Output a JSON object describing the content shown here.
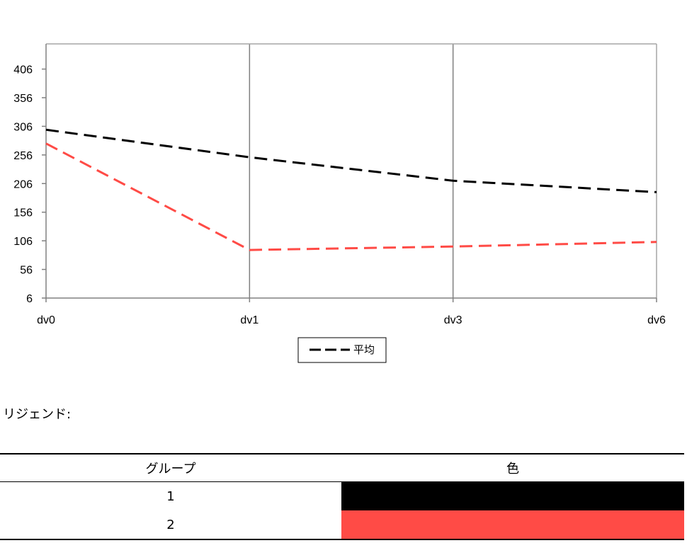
{
  "chart_data": {
    "type": "line",
    "categories": [
      "dv0",
      "dv1",
      "dv3",
      "dv6"
    ],
    "y_ticks": [
      6,
      56,
      106,
      156,
      206,
      256,
      306,
      356,
      406
    ],
    "ylim": [
      6,
      450
    ],
    "grid": "vertical",
    "series": [
      {
        "name": "平均",
        "color": "#000000",
        "dash": true,
        "values": [
          300,
          252,
          211,
          191
        ]
      },
      {
        "color": "#ff4b46",
        "dash": true,
        "values": [
          276,
          90,
          96,
          104
        ]
      }
    ],
    "legend": {
      "position": "bottom-center",
      "entries": [
        "平均"
      ]
    }
  },
  "legend_table": {
    "caption": "リジェンド:",
    "headers": [
      "グループ",
      "色"
    ],
    "rows": [
      {
        "group": "1",
        "color": "#000000"
      },
      {
        "group": "2",
        "color": "#ff4b46"
      }
    ]
  }
}
